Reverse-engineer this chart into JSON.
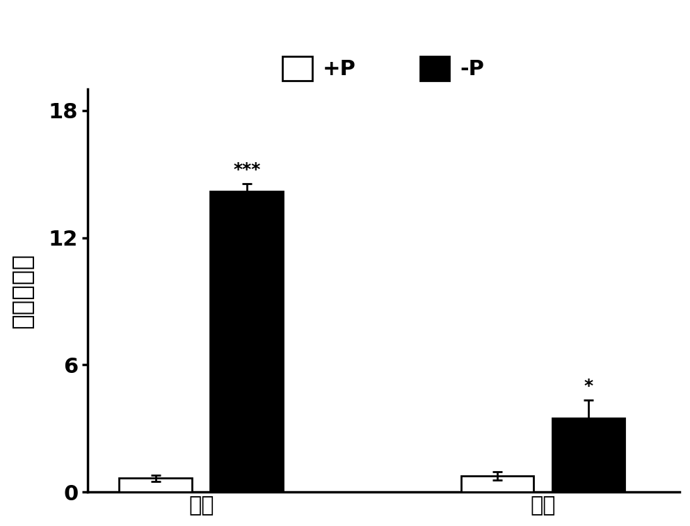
{
  "categories": [
    "叶部",
    "根部"
  ],
  "plus_p_values": [
    0.65,
    0.75
  ],
  "minus_p_values": [
    14.2,
    3.5
  ],
  "plus_p_errors": [
    0.15,
    0.2
  ],
  "minus_p_errors": [
    0.35,
    0.85
  ],
  "plus_p_color": "#ffffff",
  "minus_p_color": "#000000",
  "bar_edge_color": "#000000",
  "ylabel_chars": [
    "相",
    "对",
    "表",
    "达",
    "量"
  ],
  "ylim": [
    0,
    19
  ],
  "yticks": [
    0,
    6,
    12,
    18
  ],
  "legend_plus_label": "+P",
  "legend_minus_label": "-P",
  "leaf_minus_annotation": "***",
  "root_minus_annotation": "*",
  "bar_width": 0.32,
  "background_color": "#ffffff",
  "axis_linewidth": 2.5,
  "bar_linewidth": 2.0,
  "error_linewidth": 2.0,
  "capsize": 5,
  "annotation_fontsize": 18,
  "tick_fontsize": 22,
  "ylabel_fontsize": 26,
  "legend_fontsize": 22,
  "group_centers": [
    1.0,
    2.5
  ]
}
